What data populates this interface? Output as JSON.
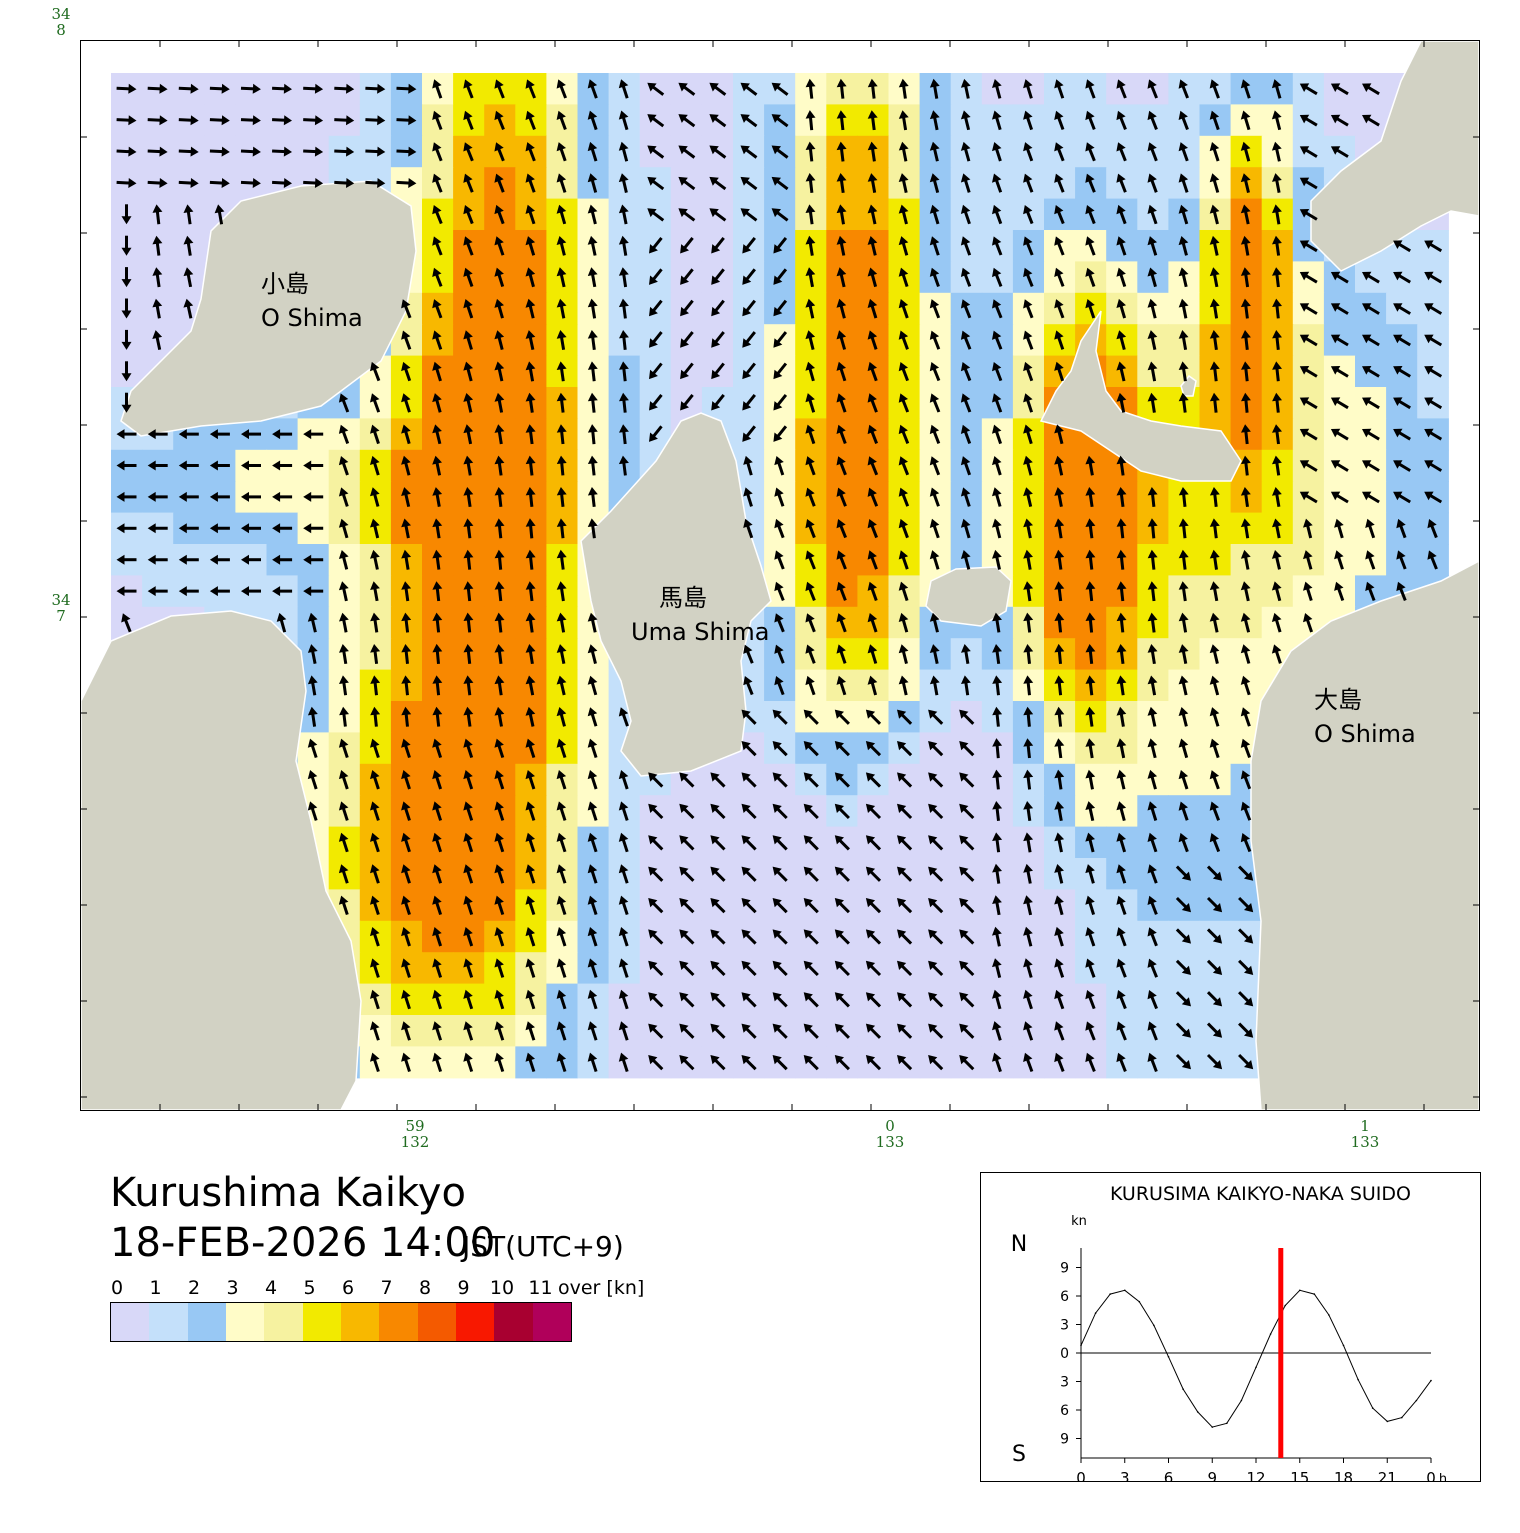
{
  "map": {
    "title": "Kurushima Kaikyo",
    "datetime": "18-FEB-2026 14:00",
    "timezone": "JST(UTC+9)",
    "lat_labels": [
      {
        "deg": "34",
        "min": "8"
      },
      {
        "deg": "34",
        "min": "7"
      }
    ],
    "lon_labels": [
      {
        "min": "59",
        "deg": "132"
      },
      {
        "min": "0",
        "deg": "133"
      },
      {
        "min": "1",
        "deg": "133"
      }
    ],
    "islands": [
      {
        "name_ja": "小島",
        "name_en": "O Shima"
      },
      {
        "name_ja": "馬島",
        "name_en": "Uma Shima"
      },
      {
        "name_ja": "大島",
        "name_en": "O Shima"
      }
    ],
    "land_color": "#d2d2c4",
    "field_note": "current vectors: direction by arrow, speed by cell color (knots)"
  },
  "legend": {
    "labels": [
      "0",
      "1",
      "2",
      "3",
      "4",
      "5",
      "6",
      "7",
      "8",
      "9",
      "10",
      "11"
    ],
    "over_label": "over",
    "unit": "[kn]",
    "colors": [
      "#d8d8f8",
      "#c4e0fa",
      "#98c8f4",
      "#fffcc8",
      "#f6f2a0",
      "#f2ea00",
      "#f8b800",
      "#f88800",
      "#f45a00",
      "#f81800",
      "#a80030",
      "#b0005a"
    ]
  },
  "tide": {
    "title": "KURUSIMA KAIKYO-NAKA SUIDO",
    "unit": "kn",
    "north": "N",
    "south": "S",
    "y_ticks": [
      "9",
      "6",
      "3",
      "0",
      "3",
      "6",
      "9"
    ],
    "x_ticks": [
      "0",
      "3",
      "6",
      "9",
      "12",
      "15",
      "18",
      "21",
      "0"
    ],
    "x_unit": "h",
    "marker_color": "#ff0000"
  },
  "chart_data": {
    "type": "line",
    "title": "KURUSIMA KAIKYO-NAKA SUIDO",
    "xlabel": "h",
    "ylabel": "kn",
    "xlim": [
      0,
      24
    ],
    "ylim": [
      -10,
      10
    ],
    "x": [
      0,
      1,
      2,
      3,
      4,
      5,
      6,
      7,
      8,
      9,
      10,
      11,
      12,
      13,
      14,
      15,
      16,
      17,
      18,
      19,
      20,
      21,
      22,
      23,
      24
    ],
    "series": [
      {
        "values": [
          0.8,
          4.2,
          6.2,
          6.6,
          5.4,
          2.9,
          -0.4,
          -3.8,
          -6.2,
          -7.8,
          -7.4,
          -5.0,
          -1.5,
          2.0,
          5.0,
          6.6,
          6.2,
          4.0,
          0.8,
          -2.8,
          -5.8,
          -7.2,
          -6.8,
          -5.0,
          -2.9
        ]
      }
    ],
    "current_time": 13.7
  }
}
